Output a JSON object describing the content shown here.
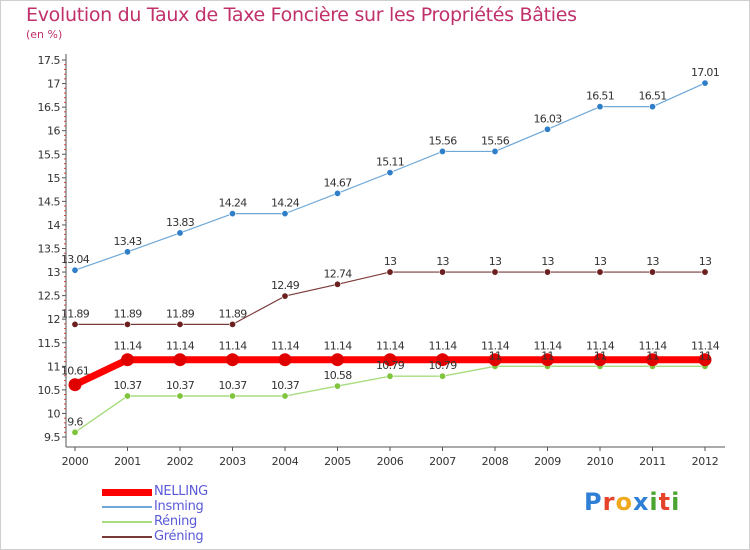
{
  "title": "Evolution du Taux de Taxe Foncière sur les Propriétés Bâties",
  "unit_label": "(en %)",
  "logo": {
    "text": "Proxiti",
    "colors": [
      "#2f7fd6",
      "#e5432a",
      "#f0a81c",
      "#2f7fd6",
      "#49a52f",
      "#e5432a",
      "#49a52f"
    ]
  },
  "chart_data": {
    "type": "line",
    "x": [
      "2000",
      "2001",
      "2002",
      "2003",
      "2004",
      "2005",
      "2006",
      "2007",
      "2008",
      "2009",
      "2010",
      "2011",
      "2012"
    ],
    "ylim": [
      9.5,
      17.5
    ],
    "yticks": [
      "9.5",
      "10",
      "10.5",
      "11",
      "11.5",
      "12",
      "12.5",
      "13",
      "13.5",
      "14",
      "14.5",
      "15",
      "15.5",
      "16",
      "16.5",
      "17",
      "17.5"
    ],
    "grid": false,
    "legend_position": "bottom-left",
    "series": [
      {
        "name": "Insming",
        "color": "#6ea8d8",
        "marker": "#2e7fc8",
        "width": 1.2,
        "label_pos": "above",
        "values": [
          13.04,
          13.43,
          13.83,
          14.24,
          14.24,
          14.67,
          15.11,
          15.56,
          15.56,
          16.03,
          16.51,
          16.51,
          17.01
        ],
        "labels": [
          "13.04",
          "13.43",
          "13.83",
          "14.24",
          "14.24",
          "14.67",
          "15.11",
          "15.56",
          "15.56",
          "16.03",
          "16.51",
          "16.51",
          "17.01"
        ]
      },
      {
        "name": "Gréning",
        "color": "#7a3a3a",
        "marker": "#6b1f1f",
        "width": 1.2,
        "label_pos": "above",
        "values": [
          11.89,
          11.89,
          11.89,
          11.89,
          12.49,
          12.74,
          13,
          13,
          13,
          13,
          13,
          13,
          13
        ],
        "labels": [
          "11.89",
          "11.89",
          "11.89",
          "11.89",
          "12.49",
          "12.74",
          "13",
          "13",
          "13",
          "13",
          "13",
          "13",
          "13"
        ]
      },
      {
        "name": "Réning",
        "color": "#a8dc80",
        "marker": "#7ec43c",
        "width": 1.4,
        "label_pos": "above",
        "values": [
          9.6,
          10.37,
          10.37,
          10.37,
          10.37,
          10.58,
          10.79,
          10.79,
          11,
          11,
          11,
          11,
          11
        ],
        "labels": [
          "9.6",
          "10.37",
          "10.37",
          "10.37",
          "10.37",
          "10.58",
          "10.79",
          "10.79",
          "11",
          "11",
          "11",
          "11",
          "11"
        ]
      },
      {
        "name": "NELLING",
        "color": "#ff0000",
        "marker": "#e00000",
        "width": 7,
        "label_pos": "above",
        "values": [
          10.61,
          11.14,
          11.14,
          11.14,
          11.14,
          11.14,
          11.14,
          11.14,
          11.14,
          11.14,
          11.14,
          11.14,
          11.14
        ],
        "labels": [
          "10.61",
          "11.14",
          "11.14",
          "11.14",
          "11.14",
          "11.14",
          "11.14",
          "11.14",
          "11.14",
          "11.14",
          "11.14",
          "11.14",
          "11.14"
        ]
      }
    ],
    "legend": [
      {
        "name": "NELLING",
        "color": "#ff0000",
        "width": 7
      },
      {
        "name": "Insming",
        "color": "#6ea8d8",
        "width": 2
      },
      {
        "name": "Réning",
        "color": "#a8dc80",
        "width": 2
      },
      {
        "name": "Gréning",
        "color": "#7a3a3a",
        "width": 2
      }
    ]
  }
}
